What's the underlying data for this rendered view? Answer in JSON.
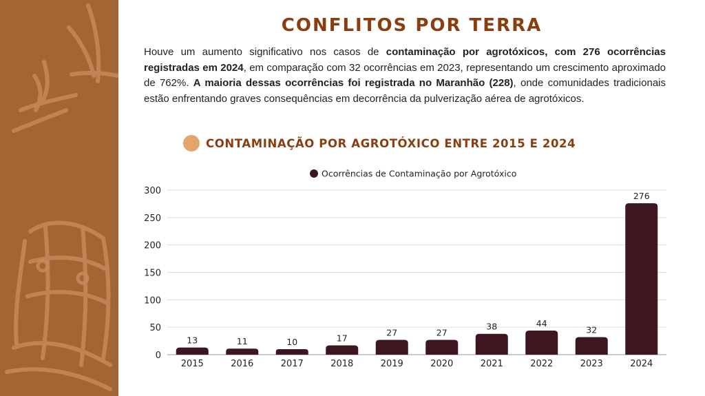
{
  "page": {
    "title": "CONFLITOS POR TERRA",
    "body": [
      {
        "text": "Houve um aumento significativo nos casos de ",
        "bold": false
      },
      {
        "text": "contaminação por agrotóxicos, com 276 ocorrências registradas em 2024",
        "bold": true
      },
      {
        "text": ", em comparação com 32 ocorrências em 2023, representando um crescimento aproximado de 762%. ",
        "bold": false
      },
      {
        "text": "A maioria dessas ocorrências foi registrada no Maranhão (228)",
        "bold": true
      },
      {
        "text": ", onde comunidades tradicionais estão enfrentando graves consequências em decorrência da pulverização aérea de agrotóxicos.",
        "bold": false
      }
    ],
    "chart_heading": "CONTAMINAÇÃO POR AGROTÓXICO ENTRE 2015 E 2024"
  },
  "colors": {
    "sidebar": "#a36534",
    "title": "#8a3e10",
    "heading_dot": "#e0a66a",
    "bar": "#3e1620"
  },
  "chart_data": {
    "type": "bar",
    "categories": [
      "2015",
      "2016",
      "2017",
      "2018",
      "2019",
      "2020",
      "2021",
      "2022",
      "2023",
      "2024"
    ],
    "series": [
      {
        "name": "Ocorrências de Contaminação por Agrotóxico",
        "values": [
          13,
          11,
          10,
          17,
          27,
          27,
          38,
          44,
          32,
          276
        ]
      }
    ],
    "yticks": [
      0,
      50,
      100,
      150,
      200,
      250,
      300
    ],
    "ylim": [
      0,
      300
    ],
    "grid": true,
    "legend_position": "top-center",
    "data_labels": true
  }
}
